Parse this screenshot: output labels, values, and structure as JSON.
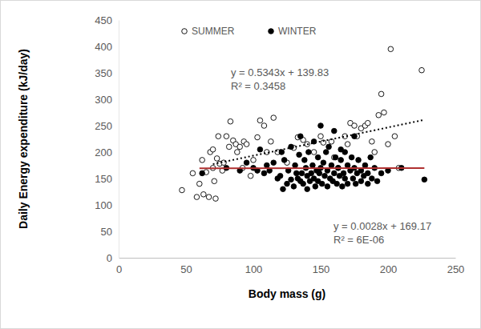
{
  "chart_data": {
    "type": "scatter",
    "xlabel": "Body mass (g)",
    "ylabel": "Daily Energy expenditure (kJ/day)",
    "xlim": [
      0,
      250
    ],
    "xticks": [
      0,
      50,
      100,
      150,
      200,
      250
    ],
    "ylim": [
      0,
      450
    ],
    "yticks": [
      0,
      50,
      100,
      150,
      200,
      250,
      300,
      350,
      400,
      450
    ],
    "grid": false,
    "legend": "top",
    "series": [
      {
        "name": "SUMMER",
        "color": "#000000",
        "marker": "circle-open",
        "x": [
          47,
          55,
          58,
          60,
          62,
          63,
          65,
          67,
          68,
          70,
          70,
          71,
          72,
          73,
          74,
          75,
          77,
          78,
          80,
          82,
          83,
          85,
          87,
          88,
          90,
          92,
          93,
          95,
          98,
          100,
          103,
          105,
          108,
          110,
          113,
          115,
          118,
          125,
          130,
          133,
          137,
          140,
          145,
          150,
          152,
          158,
          160,
          163,
          168,
          170,
          172,
          175,
          177,
          180,
          183,
          185,
          188,
          190,
          193,
          195,
          197,
          200,
          202,
          205,
          208,
          225
        ],
        "values": [
          128,
          160,
          115,
          140,
          185,
          120,
          162,
          115,
          200,
          205,
          170,
          145,
          112,
          188,
          230,
          178,
          165,
          180,
          230,
          210,
          258,
          222,
          215,
          200,
          210,
          170,
          220,
          215,
          155,
          185,
          228,
          260,
          250,
          200,
          220,
          265,
          200,
          180,
          208,
          228,
          223,
          215,
          200,
          230,
          218,
          220,
          190,
          170,
          230,
          215,
          255,
          250,
          230,
          245,
          250,
          255,
          220,
          200,
          270,
          310,
          275,
          215,
          395,
          230,
          170,
          355
        ]
      },
      {
        "name": "WINTER",
        "color": "#000000",
        "marker": "circle",
        "x": [
          100,
          103,
          105,
          108,
          110,
          112,
          115,
          118,
          120,
          121,
          122,
          123,
          125,
          126,
          128,
          128,
          130,
          131,
          132,
          133,
          134,
          135,
          135,
          136,
          137,
          138,
          139,
          140,
          140,
          141,
          142,
          143,
          144,
          145,
          145,
          146,
          147,
          148,
          148,
          149,
          150,
          150,
          151,
          152,
          153,
          154,
          155,
          155,
          156,
          157,
          158,
          159,
          160,
          160,
          161,
          162,
          163,
          164,
          165,
          165,
          166,
          167,
          168,
          168,
          170,
          170,
          172,
          173,
          174,
          175,
          175,
          176,
          177,
          178,
          180,
          180,
          182,
          183,
          185,
          185,
          187,
          188,
          190,
          192,
          195,
          200,
          210,
          227,
          62,
          80,
          90,
          95
        ],
        "values": [
          170,
          165,
          205,
          160,
          175,
          165,
          180,
          150,
          155,
          200,
          130,
          185,
          140,
          165,
          210,
          148,
          135,
          175,
          160,
          150,
          195,
          145,
          230,
          160,
          140,
          185,
          170,
          155,
          130,
          200,
          145,
          160,
          175,
          150,
          220,
          135,
          165,
          190,
          145,
          160,
          250,
          170,
          140,
          180,
          155,
          200,
          165,
          135,
          210,
          150,
          175,
          145,
          240,
          160,
          190,
          140,
          170,
          155,
          185,
          205,
          135,
          160,
          200,
          150,
          175,
          140,
          165,
          190,
          150,
          230,
          170,
          140,
          160,
          185,
          165,
          145,
          155,
          175,
          140,
          160,
          190,
          150,
          170,
          145,
          160,
          165,
          170,
          148,
          160,
          170,
          165,
          180
        ]
      },
      {
        "type": "line",
        "color": "#000000",
        "line_style": "dotted",
        "x": [
          70,
          227
        ],
        "values": [
          177.23,
          261.12
        ]
      },
      {
        "type": "line",
        "color": "#b03030",
        "line_style": "solid",
        "x": [
          60,
          227
        ],
        "values": [
          169.34,
          169.81
        ]
      }
    ],
    "annotations": [
      "y = 0.5343x + 139.83",
      "R² = 0.3458",
      "y = 0.0028x + 169.17",
      "R² = 6E-06"
    ]
  }
}
